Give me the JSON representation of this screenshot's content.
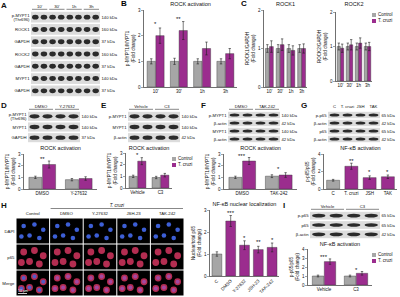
{
  "figure": {
    "blots": [
      {
        "panel_label": "A",
        "groups": [
          "10'",
          "30'",
          "1h",
          "3h"
        ],
        "lanes_per_group": 2,
        "rows": [
          {
            "name": "p-MYPT1",
            "sub": "(Thr696)",
            "kda": "140 kDa"
          },
          {
            "name": "ROCK1",
            "kda": "160 kDa"
          },
          {
            "name": "GAPDH",
            "kda": "37 kDa"
          },
          {
            "name": "ROCK2",
            "kda": "160 kDa"
          },
          {
            "name": "GAPDH",
            "kda": "37 kDa"
          },
          {
            "name": "MYPT1",
            "kda": "140 kDa"
          },
          {
            "name": "GAPDH",
            "kda": "37 kDa"
          }
        ]
      },
      {
        "panel_label": "D",
        "groups": [
          "DMSO",
          "Y-27632"
        ],
        "lanes_per_group": 2,
        "rows": [
          {
            "name": "p-MYPT1",
            "sub": "(Thr696)",
            "kda": "140 kDa"
          },
          {
            "name": "MYPT1",
            "kda": "140 kDa"
          },
          {
            "name": "GAPDH",
            "kda": "37 kDa"
          }
        ]
      },
      {
        "panel_label": "E",
        "groups": [
          "Vehicle",
          "C3"
        ],
        "lanes_per_group": 2,
        "rows": [
          {
            "name": "p-MYPT1",
            "kda": "140 kDa"
          },
          {
            "name": "MYPT1",
            "kda": "140 kDa"
          },
          {
            "name": "β-actin",
            "kda": "42 kDa"
          }
        ]
      },
      {
        "panel_label": "F",
        "groups": [
          "DMSO",
          "TAK-242"
        ],
        "lanes_per_group": 2,
        "rows": [
          {
            "name": "p-MYPT1",
            "kda": "140 kDa"
          },
          {
            "name": "β-actin",
            "kda": "42 kDa"
          },
          {
            "name": "MYPT1",
            "kda": "140 kDa"
          },
          {
            "name": "β-actin",
            "kda": "42 kDa"
          }
        ]
      },
      {
        "panel_label": "G",
        "groups": [
          "C",
          "T. cruzi",
          "JSH",
          "TAK"
        ],
        "lanes_per_group": 1,
        "rows": [
          {
            "name": "p-p65",
            "kda": "65 kDa"
          },
          {
            "name": "β-actin",
            "kda": "42 kDa"
          },
          {
            "name": "p65",
            "kda": "65 kDa"
          },
          {
            "name": "β-actin",
            "kda": "42 kDa"
          }
        ]
      },
      {
        "panel_label": "I",
        "groups": [
          "Vehicle",
          "C3"
        ],
        "lanes_per_group": 2,
        "rows": [
          {
            "name": "p-p65",
            "kda": "65 kDa"
          },
          {
            "name": "p65",
            "kda": "65 kDa"
          },
          {
            "name": "β-actin",
            "kda": "42 kDa"
          }
        ]
      }
    ],
    "microscopy": {
      "panel_label": "H",
      "group": "T. cruzi",
      "columns": [
        "Control",
        "DMSO",
        "Y-27632",
        "JSH-23",
        "TAK-242"
      ],
      "rows": [
        "DAPI",
        "p65",
        "Merge"
      ],
      "scale_bar": "10 µm"
    }
  },
  "chart_data": [
    {
      "panel_label": "B",
      "type": "bar",
      "title": "ROCK activation",
      "y_label": [
        "p-MYPT1/MYPT1",
        "(Fold change)"
      ],
      "categories": [
        "10'",
        "30'",
        "1h",
        "3h"
      ],
      "series": [
        {
          "color": "#a6a6a6",
          "values": [
            1,
            1,
            1,
            1
          ],
          "errors": [
            0.1,
            0.12,
            0.1,
            0.1
          ]
        },
        {
          "color": "#9b2d8e",
          "values": [
            2.0,
            2.2,
            1.5,
            1.3
          ],
          "errors": [
            0.3,
            0.35,
            0.25,
            0.2
          ]
        }
      ],
      "ylim": [
        0,
        3
      ],
      "yticks": [
        0,
        1,
        2,
        3
      ],
      "annotations": [
        {
          "text": "*",
          "category": "10'",
          "y": 2.45
        },
        {
          "text": "**",
          "category": "30'",
          "y": 2.65
        }
      ]
    },
    {
      "panel_label": "C",
      "type": "bar",
      "title": "ROCK1",
      "y_label": [
        "ROCK1/GAPDH",
        "(Fold change)"
      ],
      "categories": [
        "10'",
        "30'",
        "1h",
        "3h"
      ],
      "series": [
        {
          "color": "#a6a6a6",
          "values": [
            1,
            1,
            1,
            1
          ],
          "errors": [
            0.1,
            0.1,
            0.1,
            0.1
          ]
        },
        {
          "color": "#9b2d8e",
          "values": [
            1.05,
            1.1,
            0.95,
            1.0
          ],
          "errors": [
            0.15,
            0.15,
            0.12,
            0.12
          ]
        }
      ],
      "ylim": [
        0,
        2
      ],
      "yticks": [
        0,
        1,
        2
      ]
    },
    {
      "type": "bar",
      "title": "ROCK2",
      "y_label": [
        "ROCK2/GAPDH",
        "(Fold change)"
      ],
      "categories": [
        "10'",
        "30'",
        "1h",
        "3h"
      ],
      "series": [
        {
          "name": "Control",
          "color": "#a6a6a6",
          "values": [
            1,
            1,
            1,
            1
          ],
          "errors": [
            0.1,
            0.1,
            0.1,
            0.1
          ]
        },
        {
          "name": "T. cruzi",
          "color": "#9b2d8e",
          "values": [
            0.95,
            1.05,
            1.1,
            1.0
          ],
          "errors": [
            0.12,
            0.15,
            0.15,
            0.12
          ]
        }
      ],
      "ylim": [
        0,
        2
      ],
      "yticks": [
        0,
        1,
        2
      ],
      "legend": "top right"
    },
    {
      "type": "bar",
      "title": "ROCK activation",
      "y_label": [
        "p-MYPT1/MYPT1",
        "(Fold change)"
      ],
      "categories": [
        "DMSO",
        "Y-27632"
      ],
      "series": [
        {
          "color": "#a6a6a6",
          "values": [
            1,
            0.8
          ],
          "errors": [
            0.1,
            0.1
          ]
        },
        {
          "color": "#9b2d8e",
          "values": [
            2.1,
            0.9
          ],
          "errors": [
            0.3,
            0.15
          ]
        }
      ],
      "ylim": [
        0,
        3
      ],
      "yticks": [
        0,
        1,
        2,
        3
      ],
      "annotations": [
        {
          "text": "**",
          "category": "DMSO",
          "y": 2.6
        }
      ]
    },
    {
      "type": "bar",
      "title": "ROCK activation",
      "y_label": [
        "p-MYPT1/MYPT1",
        "(Fold change)"
      ],
      "categories": [
        "Vehicle",
        "C3"
      ],
      "series": [
        {
          "name": "Control",
          "color": "#a6a6a6",
          "values": [
            1,
            0.9
          ],
          "errors": [
            0.1,
            0.1
          ]
        },
        {
          "name": "T. cruzi",
          "color": "#9b2d8e",
          "values": [
            2.3,
            1.1
          ],
          "errors": [
            0.3,
            0.15
          ]
        }
      ],
      "ylim": [
        0,
        3
      ],
      "yticks": [
        0,
        1,
        2,
        3
      ],
      "legend": "top right",
      "annotations": [
        {
          "text": "*",
          "category": "Vehicle",
          "y": 2.8
        }
      ]
    },
    {
      "type": "bar",
      "title": "ROCK activation",
      "y_label": [
        "p-MYPT1/MYPT1",
        "(Fold change)"
      ],
      "categories": [
        "DMSO",
        "TAK-242"
      ],
      "series": [
        {
          "color": "#a6a6a6",
          "values": [
            1,
            1.1
          ],
          "errors": [
            0.1,
            0.12
          ]
        },
        {
          "color": "#9b2d8e",
          "values": [
            2.4,
            1.2
          ],
          "errors": [
            0.3,
            0.2
          ]
        }
      ],
      "ylim": [
        0,
        3
      ],
      "yticks": [
        0,
        1,
        2,
        3
      ],
      "annotations": [
        {
          "text": "***",
          "category": "DMSO",
          "y": 2.85
        },
        {
          "text": "*",
          "category": "TAK-242",
          "y": 1.7
        }
      ]
    },
    {
      "type": "bar",
      "title": "NF-κB activation",
      "y_label": [
        "p-p65/p65",
        "(Fold change)"
      ],
      "categories": [
        "C",
        "T. cruzi",
        "JSH",
        "TAK"
      ],
      "values": [
        1,
        2.6,
        1.3,
        1.4
      ],
      "errors": [
        0.1,
        0.35,
        0.2,
        0.2
      ],
      "colors": [
        "#a6a6a6",
        "#9b2d8e",
        "#9b2d8e",
        "#9b2d8e"
      ],
      "ylim": [
        0,
        4
      ],
      "yticks": [
        0,
        2,
        4
      ],
      "annotations": [
        {
          "text": "**",
          "category": "T. cruzi",
          "y": 3.2
        },
        {
          "text": "*",
          "category": "JSH",
          "y": 1.9
        },
        {
          "text": "*",
          "category": "TAK",
          "y": 2.0
        }
      ]
    },
    {
      "type": "bar",
      "title": "NF-κB nuclear localization",
      "y_label": [
        "Nuclear/total p65",
        "(Fold change)"
      ],
      "categories": [
        "C",
        "DMSO",
        "Y-27632",
        "JSH-23",
        "TAK-242"
      ],
      "values": [
        1,
        2.5,
        1.4,
        1.2,
        1.3
      ],
      "errors": [
        0.1,
        0.25,
        0.2,
        0.15,
        0.2
      ],
      "colors": [
        "#a6a6a6",
        "#9b2d8e",
        "#9b2d8e",
        "#9b2d8e",
        "#9b2d8e"
      ],
      "ylim": [
        0,
        3
      ],
      "yticks": [
        0,
        1,
        2,
        3
      ],
      "annotations": [
        {
          "text": "***",
          "category": "DMSO",
          "y": 2.85
        },
        {
          "text": "*",
          "category": "Y-27632",
          "y": 1.75
        },
        {
          "text": "**",
          "category": "JSH-23",
          "y": 1.55
        },
        {
          "text": "*",
          "category": "TAK-242",
          "y": 1.65
        }
      ]
    },
    {
      "type": "bar",
      "title": "NF-κB activation",
      "y_label": [
        "p-p65/p65",
        "(Fold change)"
      ],
      "categories": [
        "Vehicle",
        "C3"
      ],
      "series": [
        {
          "name": "Control",
          "color": "#a6a6a6",
          "values": [
            1,
            1
          ],
          "errors": [
            0.1,
            0.1
          ]
        },
        {
          "name": "T. cruzi",
          "color": "#9b2d8e",
          "values": [
            2.6,
            1.3
          ],
          "errors": [
            0.3,
            0.2
          ]
        }
      ],
      "ylim": [
        0,
        4
      ],
      "yticks": [
        0,
        1,
        2,
        3,
        4
      ],
      "legend": "top right",
      "annotations": [
        {
          "text": "***",
          "category": "Vehicle",
          "y": 3.1
        },
        {
          "text": "*",
          "category": "C3",
          "y": 1.7
        }
      ]
    }
  ]
}
